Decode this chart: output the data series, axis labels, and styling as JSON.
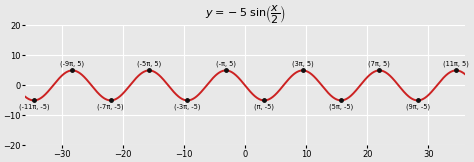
{
  "xlim": [
    -36,
    36
  ],
  "ylim": [
    -20,
    20
  ],
  "xticks": [
    -30,
    -20,
    -10,
    0,
    10,
    20,
    30
  ],
  "yticks": [
    -20,
    -10,
    0,
    10,
    20
  ],
  "line_color": "#cc2222",
  "dot_color": "#111111",
  "bg_color": "#e8e8e8",
  "grid_color": "#ffffff",
  "points_top_x_pi": [
    -9,
    -5,
    -1,
    3,
    7,
    11
  ],
  "points_top_y": [
    5,
    5,
    5,
    5,
    5,
    5
  ],
  "labels_top": [
    "(-9π, 5)",
    "(-5π, 5)",
    "(-π, 5)",
    "(3π, 5)",
    "(7π, 5)",
    "(11π, 5)"
  ],
  "points_bottom_x_pi": [
    -11,
    -7,
    -3,
    1,
    5,
    9
  ],
  "points_bottom_y": [
    -5,
    -5,
    -5,
    -5,
    -5,
    -5
  ],
  "labels_bottom": [
    "(-11π, -5)",
    "(-7π, -5)",
    "(-3π, -5)",
    "(π, -5)",
    "(5π, -5)",
    "(9π, -5)"
  ],
  "tick_fontsize": 6,
  "label_fontsize": 4.8,
  "title_fontsize": 8,
  "line_width": 1.4
}
